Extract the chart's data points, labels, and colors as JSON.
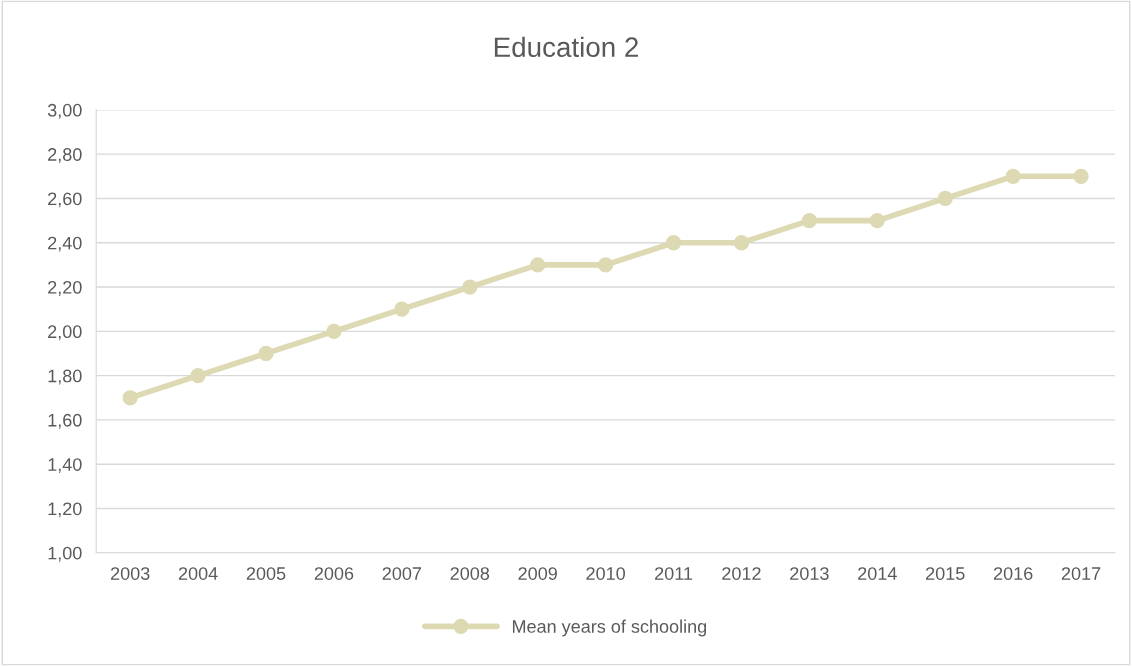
{
  "chart_data": {
    "type": "line",
    "title": "Education 2",
    "categories": [
      "2003",
      "2004",
      "2005",
      "2006",
      "2007",
      "2008",
      "2009",
      "2010",
      "2011",
      "2012",
      "2013",
      "2014",
      "2015",
      "2016",
      "2017"
    ],
    "series": [
      {
        "name": "Mean years of schooling",
        "color": "#ddd9b3",
        "values": [
          1.7,
          1.8,
          1.9,
          2.0,
          2.1,
          2.2,
          2.3,
          2.3,
          2.4,
          2.4,
          2.5,
          2.5,
          2.6,
          2.7,
          2.7
        ]
      }
    ],
    "ylim": [
      1.0,
      3.0
    ],
    "yticks": [
      {
        "value": 1.0,
        "label": "1,00"
      },
      {
        "value": 1.2,
        "label": "1,20"
      },
      {
        "value": 1.4,
        "label": "1,40"
      },
      {
        "value": 1.6,
        "label": "1,60"
      },
      {
        "value": 1.8,
        "label": "1,80"
      },
      {
        "value": 2.0,
        "label": "2,00"
      },
      {
        "value": 2.2,
        "label": "2,20"
      },
      {
        "value": 2.4,
        "label": "2,40"
      },
      {
        "value": 2.6,
        "label": "2,60"
      },
      {
        "value": 2.8,
        "label": "2,80"
      },
      {
        "value": 3.0,
        "label": "3,00"
      }
    ],
    "grid": "y",
    "legend": "bottom",
    "marker": "circle",
    "line_style": "solid"
  }
}
